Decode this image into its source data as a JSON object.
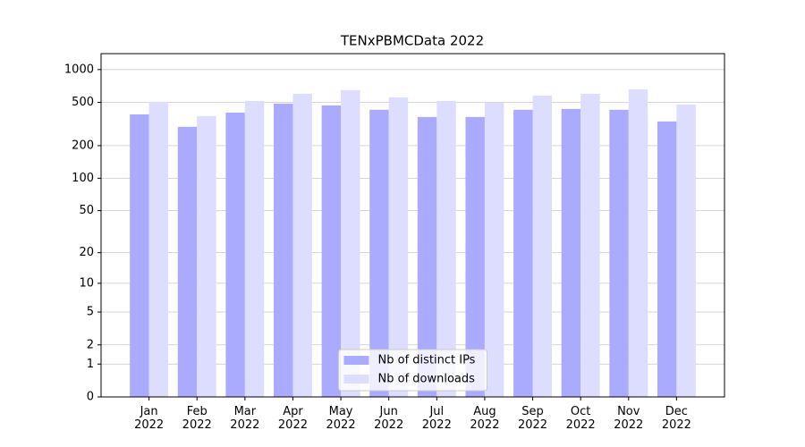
{
  "chart_data": {
    "type": "bar",
    "title": "TENxPBMCData 2022",
    "categories": [
      "Jan 2022",
      "Feb 2022",
      "Mar 2022",
      "Apr 2022",
      "May 2022",
      "Jun 2022",
      "Jul 2022",
      "Aug 2022",
      "Sep 2022",
      "Oct 2022",
      "Nov 2022",
      "Dec 2022"
    ],
    "series": [
      {
        "name": "Nb of distinct IPs",
        "color": "#aaaaff",
        "values": [
          388,
          298,
          403,
          487,
          469,
          427,
          367,
          367,
          427,
          435,
          427,
          334
        ]
      },
      {
        "name": "Nb of downloads",
        "color": "#ddddff",
        "values": [
          506,
          374,
          515,
          600,
          647,
          556,
          515,
          496,
          577,
          600,
          659,
          478
        ]
      }
    ],
    "yscale": "log1p",
    "ylim": [
      0,
      1400
    ],
    "yticks": [
      0,
      1,
      2,
      5,
      10,
      20,
      50,
      100,
      200,
      500,
      1000
    ],
    "grid": true,
    "legend": "lower center"
  }
}
